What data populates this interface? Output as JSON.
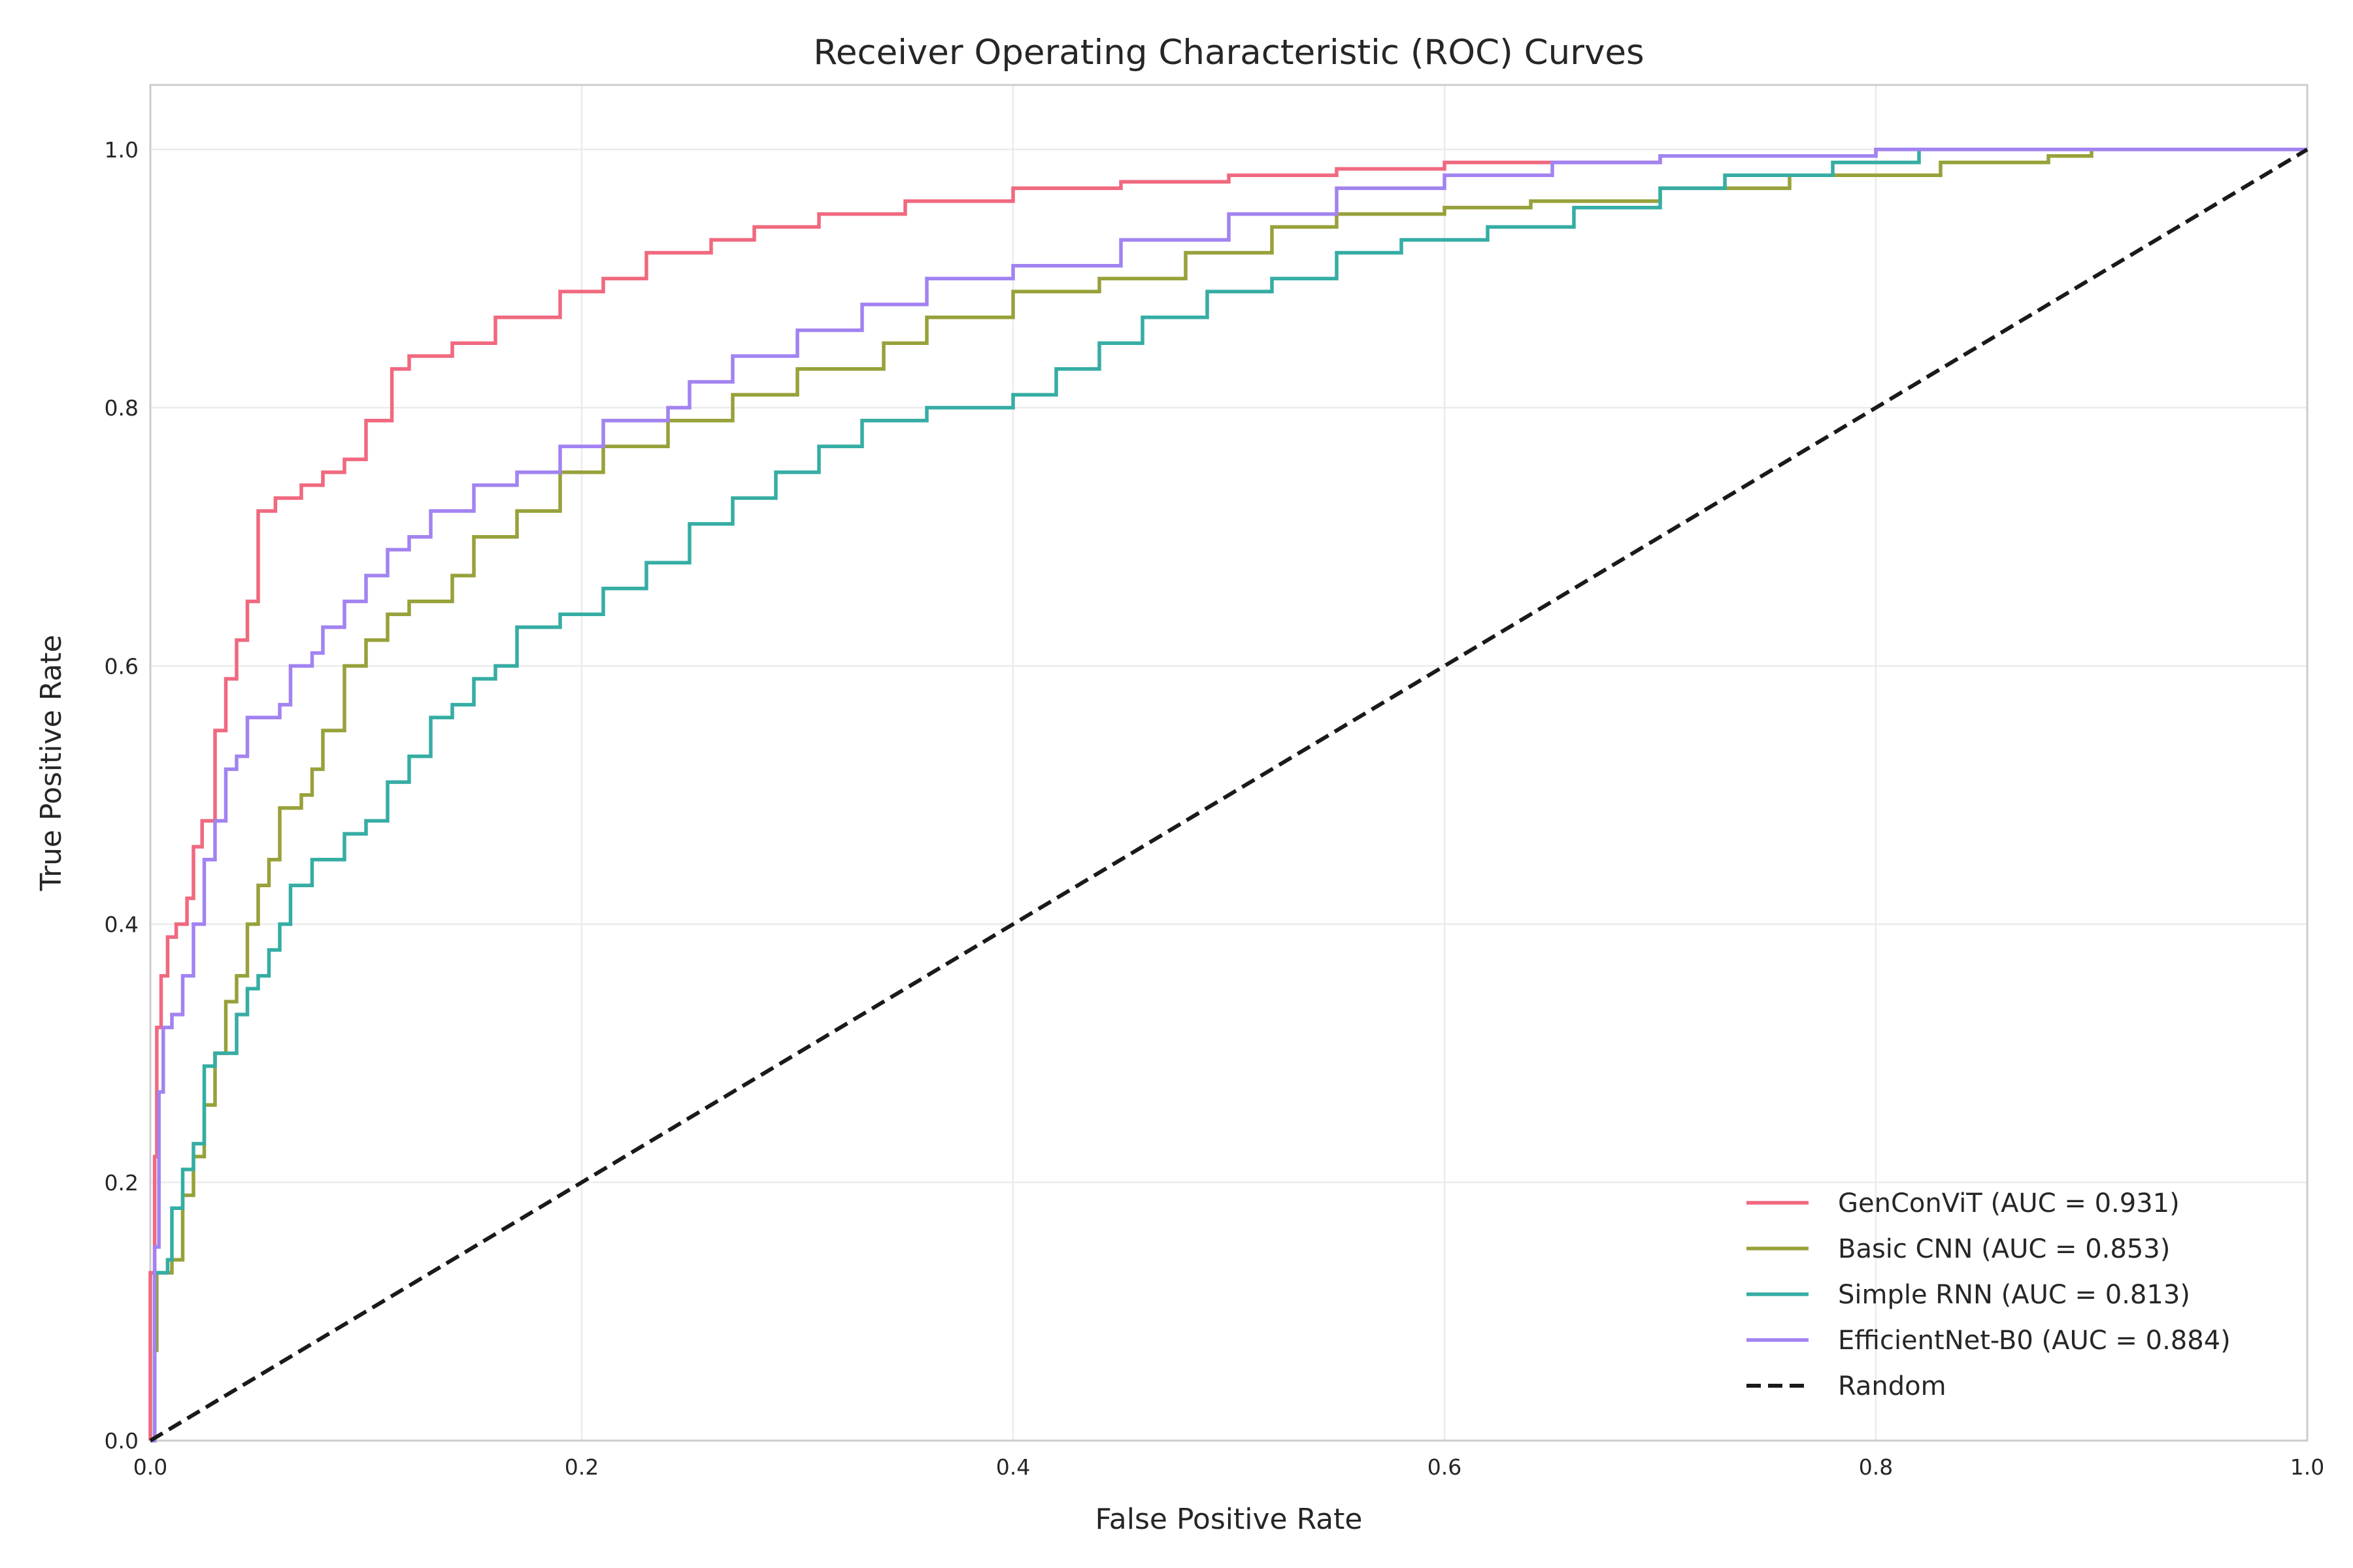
{
  "chart_data": {
    "type": "line",
    "title": "Receiver Operating Characteristic (ROC) Curves",
    "xlabel": "False Positive Rate",
    "ylabel": "True Positive Rate",
    "xlim": [
      0.0,
      1.0
    ],
    "ylim": [
      0.0,
      1.05
    ],
    "xticks": [
      "0.0",
      "0.2",
      "0.4",
      "0.6",
      "0.8",
      "1.0"
    ],
    "yticks": [
      "0.0",
      "0.2",
      "0.4",
      "0.6",
      "0.8",
      "1.0"
    ],
    "grid": true,
    "legend_position": "lower-right",
    "series": [
      {
        "name": "GenConViT (AUC = 0.931)",
        "color": "#f0697f",
        "style": "solid",
        "points": [
          [
            0.0,
            0.0
          ],
          [
            0.0,
            0.13
          ],
          [
            0.002,
            0.22
          ],
          [
            0.003,
            0.32
          ],
          [
            0.005,
            0.36
          ],
          [
            0.008,
            0.39
          ],
          [
            0.012,
            0.4
          ],
          [
            0.017,
            0.42
          ],
          [
            0.02,
            0.46
          ],
          [
            0.024,
            0.48
          ],
          [
            0.03,
            0.5
          ],
          [
            0.03,
            0.55
          ],
          [
            0.035,
            0.59
          ],
          [
            0.04,
            0.62
          ],
          [
            0.045,
            0.65
          ],
          [
            0.05,
            0.67
          ],
          [
            0.05,
            0.72
          ],
          [
            0.058,
            0.73
          ],
          [
            0.07,
            0.74
          ],
          [
            0.08,
            0.75
          ],
          [
            0.09,
            0.76
          ],
          [
            0.1,
            0.79
          ],
          [
            0.11,
            0.79
          ],
          [
            0.112,
            0.83
          ],
          [
            0.12,
            0.84
          ],
          [
            0.14,
            0.85
          ],
          [
            0.16,
            0.87
          ],
          [
            0.175,
            0.87
          ],
          [
            0.19,
            0.89
          ],
          [
            0.21,
            0.9
          ],
          [
            0.23,
            0.92
          ],
          [
            0.26,
            0.93
          ],
          [
            0.28,
            0.94
          ],
          [
            0.31,
            0.95
          ],
          [
            0.35,
            0.96
          ],
          [
            0.4,
            0.97
          ],
          [
            0.45,
            0.975
          ],
          [
            0.5,
            0.98
          ],
          [
            0.55,
            0.985
          ],
          [
            0.6,
            0.99
          ],
          [
            0.7,
            0.995
          ],
          [
            0.8,
            1.0
          ],
          [
            1.0,
            1.0
          ]
        ]
      },
      {
        "name": "Basic CNN (AUC = 0.853)",
        "color": "#98a13a",
        "style": "solid",
        "points": [
          [
            0.0,
            0.0
          ],
          [
            0.002,
            0.07
          ],
          [
            0.003,
            0.13
          ],
          [
            0.01,
            0.14
          ],
          [
            0.015,
            0.19
          ],
          [
            0.02,
            0.22
          ],
          [
            0.025,
            0.26
          ],
          [
            0.03,
            0.3
          ],
          [
            0.035,
            0.34
          ],
          [
            0.04,
            0.36
          ],
          [
            0.045,
            0.4
          ],
          [
            0.05,
            0.43
          ],
          [
            0.055,
            0.45
          ],
          [
            0.06,
            0.49
          ],
          [
            0.07,
            0.5
          ],
          [
            0.075,
            0.52
          ],
          [
            0.08,
            0.55
          ],
          [
            0.09,
            0.58
          ],
          [
            0.09,
            0.6
          ],
          [
            0.1,
            0.62
          ],
          [
            0.11,
            0.64
          ],
          [
            0.12,
            0.65
          ],
          [
            0.14,
            0.67
          ],
          [
            0.15,
            0.7
          ],
          [
            0.17,
            0.72
          ],
          [
            0.19,
            0.75
          ],
          [
            0.21,
            0.77
          ],
          [
            0.24,
            0.79
          ],
          [
            0.27,
            0.81
          ],
          [
            0.3,
            0.83
          ],
          [
            0.34,
            0.85
          ],
          [
            0.36,
            0.87
          ],
          [
            0.4,
            0.89
          ],
          [
            0.44,
            0.9
          ],
          [
            0.48,
            0.92
          ],
          [
            0.52,
            0.94
          ],
          [
            0.55,
            0.95
          ],
          [
            0.6,
            0.955
          ],
          [
            0.64,
            0.96
          ],
          [
            0.7,
            0.97
          ],
          [
            0.76,
            0.98
          ],
          [
            0.83,
            0.99
          ],
          [
            0.88,
            0.995
          ],
          [
            0.9,
            1.0
          ],
          [
            1.0,
            1.0
          ]
        ]
      },
      {
        "name": "Simple RNN (AUC = 0.813)",
        "color": "#36ada4",
        "style": "solid",
        "points": [
          [
            0.0,
            0.0
          ],
          [
            0.002,
            0.13
          ],
          [
            0.008,
            0.14
          ],
          [
            0.01,
            0.18
          ],
          [
            0.015,
            0.21
          ],
          [
            0.02,
            0.23
          ],
          [
            0.025,
            0.29
          ],
          [
            0.03,
            0.3
          ],
          [
            0.04,
            0.33
          ],
          [
            0.045,
            0.35
          ],
          [
            0.05,
            0.36
          ],
          [
            0.055,
            0.38
          ],
          [
            0.06,
            0.4
          ],
          [
            0.065,
            0.43
          ],
          [
            0.075,
            0.45
          ],
          [
            0.09,
            0.47
          ],
          [
            0.1,
            0.48
          ],
          [
            0.11,
            0.51
          ],
          [
            0.12,
            0.53
          ],
          [
            0.13,
            0.56
          ],
          [
            0.14,
            0.57
          ],
          [
            0.15,
            0.59
          ],
          [
            0.16,
            0.6
          ],
          [
            0.17,
            0.63
          ],
          [
            0.19,
            0.64
          ],
          [
            0.21,
            0.66
          ],
          [
            0.23,
            0.68
          ],
          [
            0.25,
            0.71
          ],
          [
            0.27,
            0.73
          ],
          [
            0.29,
            0.75
          ],
          [
            0.31,
            0.77
          ],
          [
            0.33,
            0.79
          ],
          [
            0.36,
            0.8
          ],
          [
            0.4,
            0.81
          ],
          [
            0.42,
            0.83
          ],
          [
            0.44,
            0.85
          ],
          [
            0.46,
            0.87
          ],
          [
            0.49,
            0.89
          ],
          [
            0.52,
            0.9
          ],
          [
            0.55,
            0.92
          ],
          [
            0.58,
            0.93
          ],
          [
            0.62,
            0.94
          ],
          [
            0.66,
            0.955
          ],
          [
            0.7,
            0.97
          ],
          [
            0.73,
            0.98
          ],
          [
            0.78,
            0.99
          ],
          [
            0.82,
            1.0
          ],
          [
            1.0,
            1.0
          ]
        ]
      },
      {
        "name": "EfficientNet-B0 (AUC = 0.884)",
        "color": "#a283f1",
        "style": "solid",
        "points": [
          [
            0.0,
            0.0
          ],
          [
            0.002,
            0.15
          ],
          [
            0.004,
            0.27
          ],
          [
            0.006,
            0.32
          ],
          [
            0.01,
            0.33
          ],
          [
            0.015,
            0.36
          ],
          [
            0.02,
            0.4
          ],
          [
            0.025,
            0.45
          ],
          [
            0.03,
            0.48
          ],
          [
            0.035,
            0.52
          ],
          [
            0.04,
            0.53
          ],
          [
            0.045,
            0.56
          ],
          [
            0.06,
            0.57
          ],
          [
            0.065,
            0.6
          ],
          [
            0.075,
            0.61
          ],
          [
            0.08,
            0.63
          ],
          [
            0.09,
            0.65
          ],
          [
            0.1,
            0.67
          ],
          [
            0.11,
            0.69
          ],
          [
            0.12,
            0.7
          ],
          [
            0.13,
            0.72
          ],
          [
            0.15,
            0.74
          ],
          [
            0.17,
            0.75
          ],
          [
            0.19,
            0.77
          ],
          [
            0.21,
            0.79
          ],
          [
            0.24,
            0.8
          ],
          [
            0.25,
            0.82
          ],
          [
            0.27,
            0.84
          ],
          [
            0.3,
            0.86
          ],
          [
            0.33,
            0.88
          ],
          [
            0.36,
            0.9
          ],
          [
            0.4,
            0.91
          ],
          [
            0.45,
            0.93
          ],
          [
            0.5,
            0.95
          ],
          [
            0.55,
            0.97
          ],
          [
            0.6,
            0.98
          ],
          [
            0.65,
            0.99
          ],
          [
            0.7,
            0.995
          ],
          [
            0.8,
            1.0
          ],
          [
            1.0,
            1.0
          ]
        ]
      },
      {
        "name": "Random",
        "color": "#1a1a1a",
        "style": "dashed",
        "points": [
          [
            0.0,
            0.0
          ],
          [
            1.0,
            1.0
          ]
        ]
      }
    ]
  }
}
